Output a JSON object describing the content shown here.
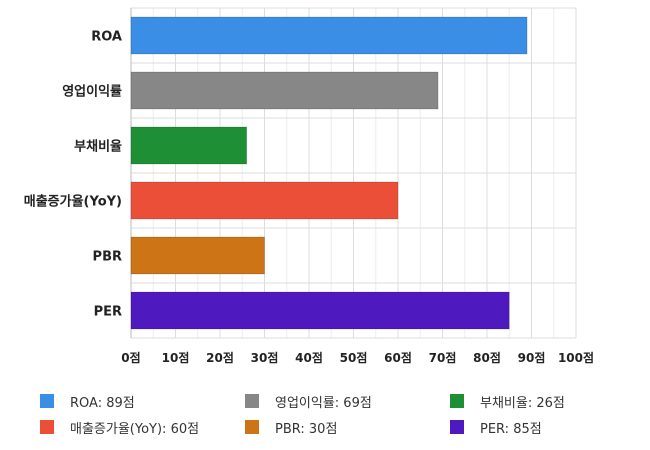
{
  "chart_data": {
    "type": "bar",
    "orientation": "horizontal",
    "categories": [
      "ROA",
      "영업이익률",
      "부채비율",
      "매출증가율(YoY)",
      "PBR",
      "PER"
    ],
    "values": [
      89,
      69,
      26,
      60,
      30,
      85
    ],
    "colors": [
      "#3a8ee6",
      "#878787",
      "#1e8f35",
      "#eb4f38",
      "#cc7416",
      "#4f19c0"
    ],
    "xlim": [
      0,
      100
    ],
    "xticks": [
      0,
      10,
      20,
      30,
      40,
      50,
      60,
      70,
      80,
      90,
      100
    ],
    "tick_labels": [
      "0점",
      "10점",
      "20점",
      "30점",
      "40점",
      "50점",
      "60점",
      "70점",
      "80점",
      "90점",
      "100점"
    ],
    "grid": true,
    "legend_position": "bottom",
    "legend": [
      "ROA: 89점",
      "영업이익률: 69점",
      "부채비율: 26점",
      "매출증가율(YoY): 60점",
      "PBR: 30점",
      "PER: 85점"
    ]
  }
}
